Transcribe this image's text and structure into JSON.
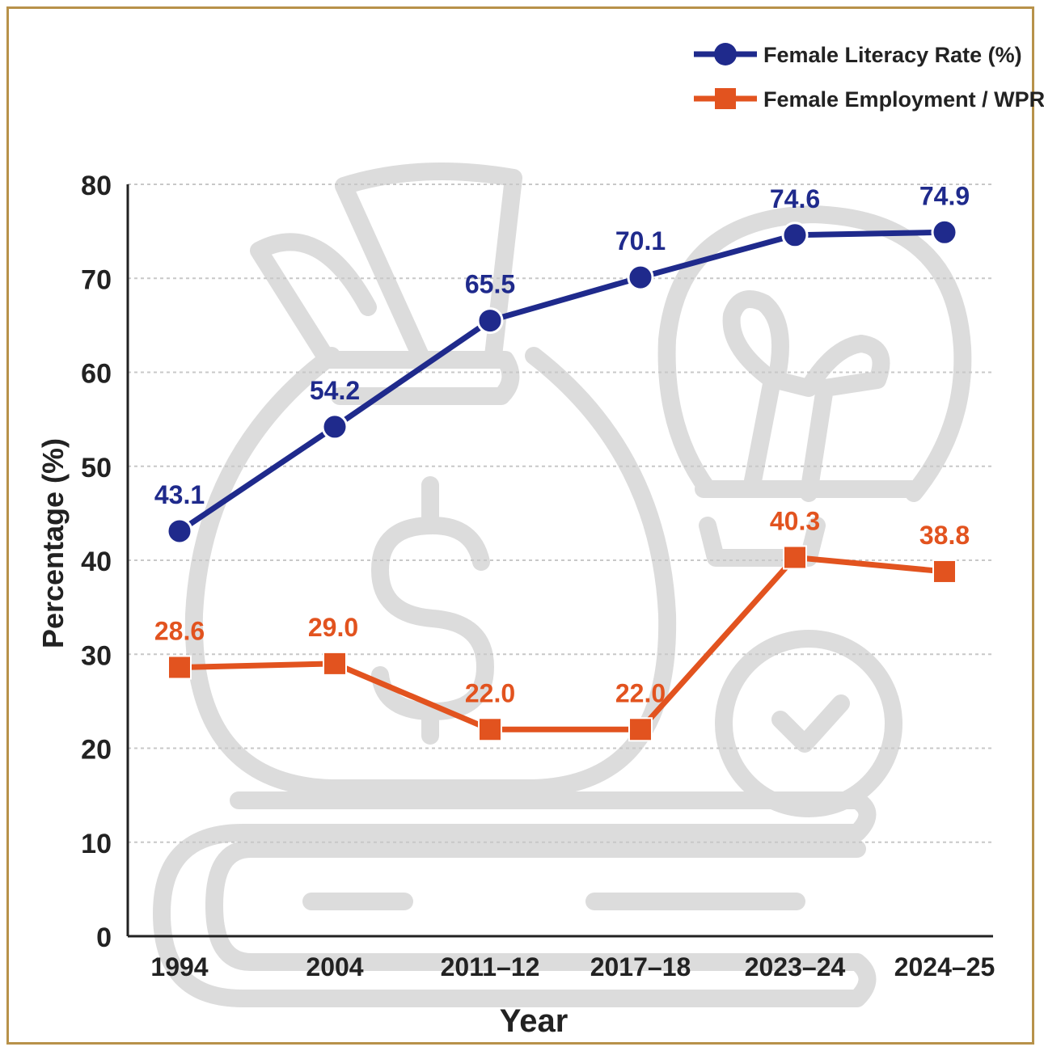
{
  "colors": {
    "frame": "#b8924a",
    "literacy": "#1f2a8c",
    "employment": "#e2531f",
    "grid": "#c8c8c8",
    "axis": "#222222",
    "watermark": "#dcdcdc"
  },
  "watermark_icons": [
    "money-bag-icon",
    "lightbulb-icon",
    "book-icon",
    "checkmark-clock-icon"
  ],
  "chart_data": {
    "type": "line",
    "title": "",
    "xlabel": "Year",
    "ylabel": "Percentage (%)",
    "categories": [
      "1994",
      "2004",
      "2011–12",
      "2017–18",
      "2023–24",
      "2024–25"
    ],
    "yticks": [
      "0",
      "10",
      "20",
      "30",
      "40",
      "50",
      "60",
      "70",
      "80"
    ],
    "ylim": [
      0,
      80
    ],
    "grid": true,
    "legend_position": "top-right",
    "series": [
      {
        "name": "Female Literacy Rate (%)",
        "marker": "circle",
        "values": [
          43.1,
          54.2,
          65.5,
          70.1,
          74.6,
          74.9
        ],
        "labels": [
          "43.1",
          "54.2",
          "65.5",
          "70.1",
          "74.6",
          "74.9"
        ]
      },
      {
        "name": "Female Employment / WPR (%)",
        "marker": "square",
        "values": [
          28.6,
          29.0,
          22.0,
          22.0,
          40.3,
          38.8
        ],
        "labels": [
          "28.6",
          "29.0",
          "22.0",
          "22.0",
          "40.3",
          "38.8"
        ]
      }
    ]
  }
}
